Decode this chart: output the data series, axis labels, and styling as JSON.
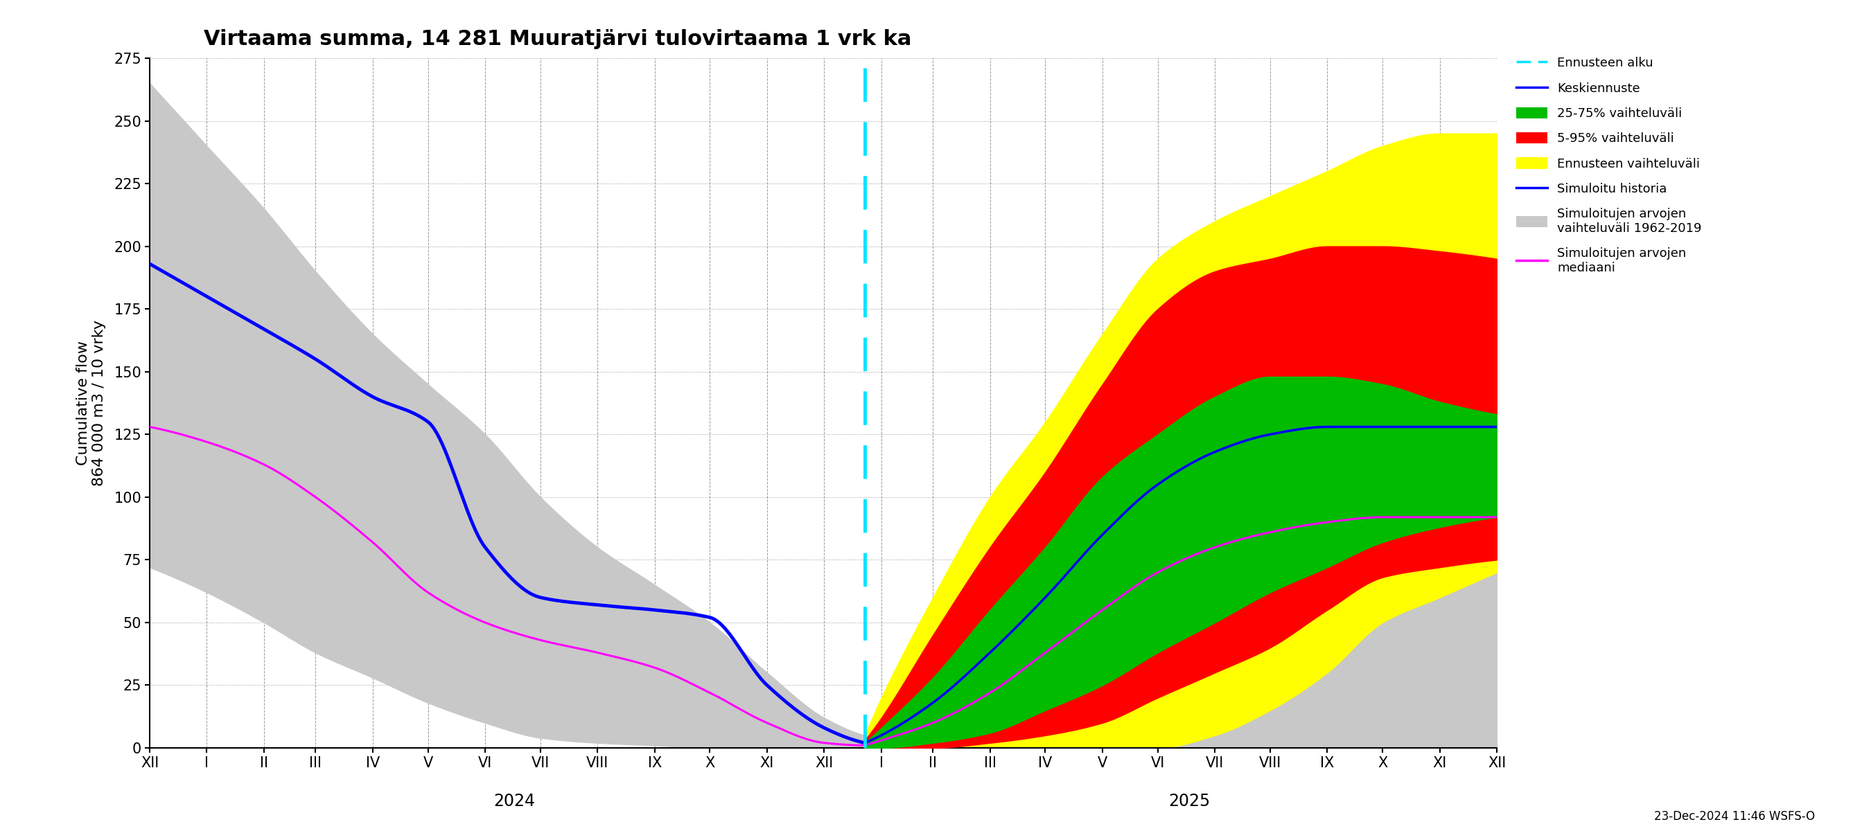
{
  "title": "Virtaama summa, 14 281 Muuratjärvi tulovirtaama 1 vrk ka",
  "ylabel1": "Cumulative flow",
  "ylabel2": "864 000 m3 / 10 vrky",
  "ylim": [
    0,
    275
  ],
  "yticks": [
    0,
    25,
    50,
    75,
    100,
    125,
    150,
    175,
    200,
    225,
    250,
    275
  ],
  "month_labels": [
    "XII",
    "I",
    "II",
    "III",
    "IV",
    "V",
    "VI",
    "VII",
    "VIII",
    "IX",
    "X",
    "XI",
    "XII",
    "I",
    "II",
    "III",
    "IV",
    "V",
    "VI",
    "VII",
    "VIII",
    "IX",
    "X",
    "XI",
    "XII"
  ],
  "year_labels": [
    "2024",
    "2025"
  ],
  "note": "23-Dec-2024 11:46 WSFS-O",
  "legend_labels": [
    "Ennusteen alku",
    "Keskiennuste",
    "25-75% vaihteluväli",
    "5-95% vaihteluväli",
    "Ennusteen vaihteluväli",
    "Simuloitu historia",
    "Simuloitujen arvojen\nvaihteluväli 1962-2019",
    "Simuloitujen arvojen\nmediaani"
  ],
  "colors": {
    "gray_band": "#c8c8c8",
    "yellow_band": "#ffff00",
    "red_band": "#ff0000",
    "green_band": "#00bb00",
    "blue_line": "#0000ff",
    "magenta_line": "#ff00ff",
    "cyan_vline": "#00e5ff"
  }
}
